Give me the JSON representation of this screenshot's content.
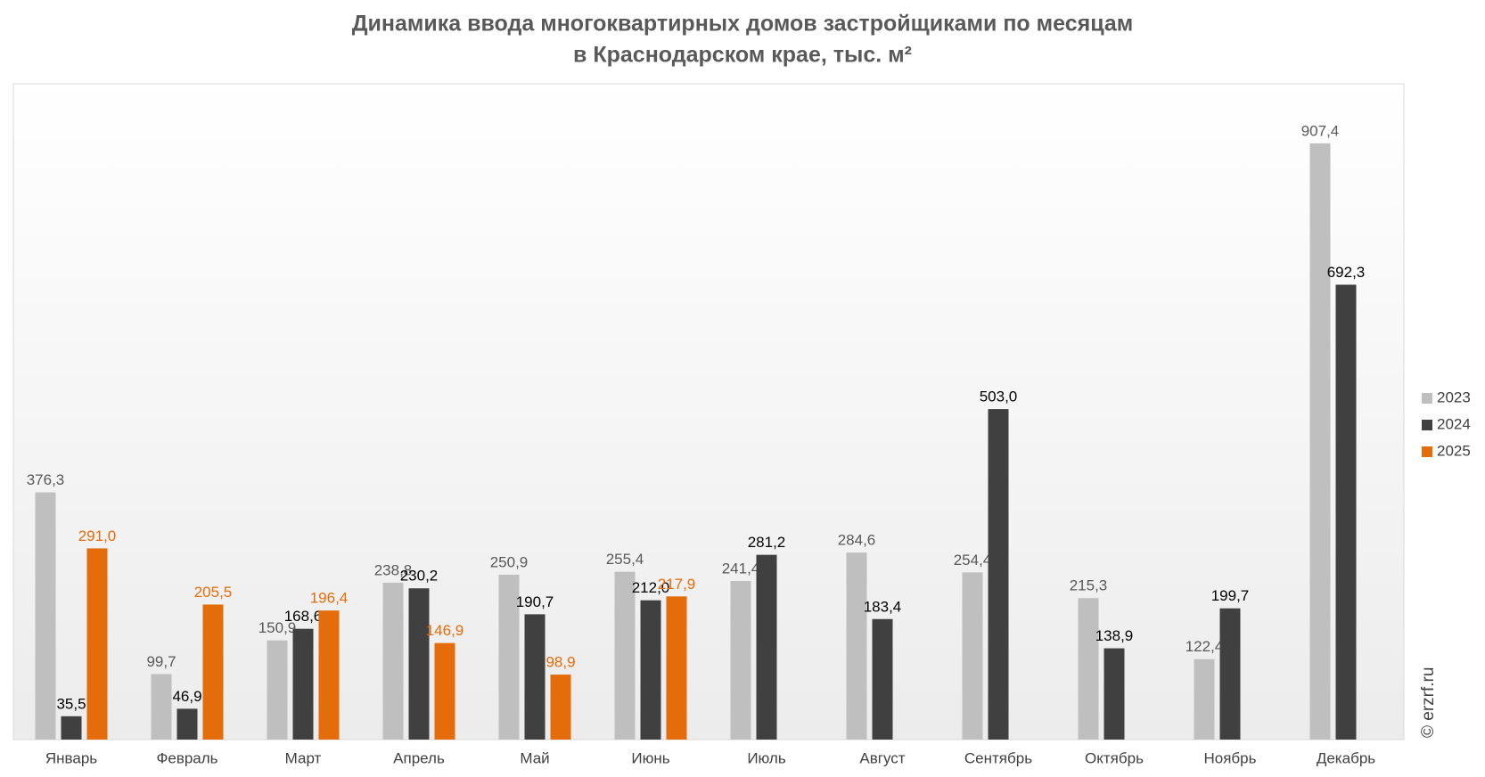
{
  "chart_data": {
    "type": "bar",
    "title": [
      "Динамика ввода многоквартирных домов застройщиками по месяцам",
      "в Краснодарском крае, тыс. м²"
    ],
    "categories": [
      "Январь",
      "Февраль",
      "Март",
      "Апрель",
      "Май",
      "Июнь",
      "Июль",
      "Август",
      "Сентябрь",
      "Октябрь",
      "Ноябрь",
      "Декабрь"
    ],
    "series": [
      {
        "name": "2023",
        "color": "#bfbfbf",
        "label_color": "#595959",
        "values": [
          376.3,
          99.7,
          150.9,
          238.8,
          250.9,
          255.4,
          241.4,
          284.6,
          254.4,
          215.3,
          122.4,
          907.4
        ],
        "value_labels": [
          "376,3",
          "99,7",
          "150,9",
          "238,8",
          "250,9",
          "255,4",
          "241,4",
          "284,6",
          "254,4",
          "215,3",
          "122,4",
          "907,4"
        ]
      },
      {
        "name": "2024",
        "color": "#404040",
        "label_color": "#000000",
        "values": [
          35.5,
          46.9,
          168.6,
          230.2,
          190.7,
          212.0,
          281.2,
          183.4,
          503.0,
          138.9,
          199.7,
          692.3
        ],
        "value_labels": [
          "35,5",
          "46,9",
          "168,6",
          "230,2",
          "190,7",
          "212,0",
          "281,2",
          "183,4",
          "503,0",
          "138,9",
          "199,7",
          "692,3"
        ]
      },
      {
        "name": "2025",
        "color": "#e46c0a",
        "label_color": "#e46c0a",
        "values": [
          291.0,
          205.5,
          196.4,
          146.9,
          98.9,
          217.9,
          null,
          null,
          null,
          null,
          null,
          null
        ],
        "value_labels": [
          "291,0",
          "205,5",
          "196,4",
          "146,9",
          "98,9",
          "217,9",
          null,
          null,
          null,
          null,
          null,
          null
        ]
      }
    ],
    "legend": "right",
    "source": "© erzrf.ru"
  }
}
